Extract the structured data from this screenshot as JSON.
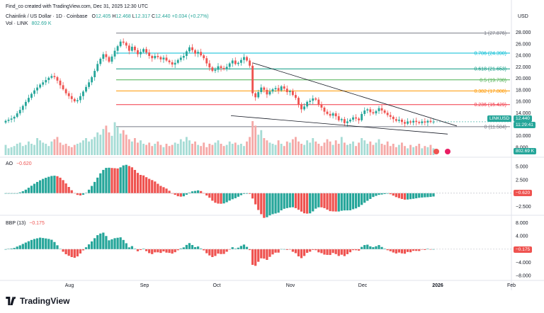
{
  "header": {
    "created_by": "Find_co created with TradingView.com, Dec 31, 2025 12:30 UTC",
    "symbol_line": "Chainlink / US Dollar · 1D · Coinbase",
    "ohlc": {
      "o_label": "O",
      "o": "12.405",
      "h_label": "H",
      "h": "12.468",
      "l_label": "L",
      "l": "12.317",
      "c_label": "C",
      "c": "12.440",
      "chg": "+0.034 (+0.27%)"
    },
    "vol_label": "Vol · LINK",
    "vol_value": "802.69 K",
    "currency": "USD"
  },
  "colors": {
    "up": "#26a69a",
    "down": "#ef5350",
    "text": "#131722",
    "grid": "#f0f3fa",
    "axis": "#787b86"
  },
  "branding": {
    "logo": "TradingView"
  },
  "chart_data": [
    {
      "type": "candlestick",
      "name": "price",
      "x_labels": [
        "Aug",
        "Sep",
        "Oct",
        "Nov",
        "Dec",
        "2026",
        "Feb"
      ],
      "y_ticks": [
        "28.000",
        "26.000",
        "24.000",
        "22.000",
        "20.000",
        "18.000",
        "16.000",
        "14.000",
        "12.000",
        "10.000",
        "8.000"
      ],
      "ylim": [
        7.5,
        29.2
      ],
      "last_price": "12.440",
      "last_symbol": "LINKUSD",
      "countdown": "11:29:41",
      "fib_levels": [
        {
          "ratio": "1",
          "value": "27.876",
          "color": "#787b86",
          "label": "1 (27.876)"
        },
        {
          "ratio": "0.786",
          "value": "24.390",
          "color": "#00bcd4",
          "label": "0.786 (24.390)"
        },
        {
          "ratio": "0.618",
          "value": "21.653",
          "color": "#089981",
          "label": "0.618 (21.653)"
        },
        {
          "ratio": "0.5",
          "value": "19.730",
          "color": "#4caf50",
          "label": "0.5 (19.730)"
        },
        {
          "ratio": "0.382",
          "value": "17.808",
          "color": "#ff9800",
          "label": "0.382 (17.808)"
        },
        {
          "ratio": "0.236",
          "value": "15.429",
          "color": "#f23645",
          "label": "0.236 (15.429)"
        },
        {
          "ratio": "0",
          "value": "11.584",
          "color": "#787b86",
          "label": "0 (11.584)"
        }
      ],
      "closes": [
        12.6,
        12.8,
        13.0,
        13.3,
        13.9,
        14.5,
        15.2,
        15.9,
        16.6,
        17.3,
        17.9,
        18.4,
        18.9,
        19.3,
        19.7,
        20.1,
        20.4,
        20.2,
        19.6,
        18.8,
        18.1,
        17.4,
        16.9,
        16.4,
        16.0,
        16.2,
        16.9,
        17.7,
        18.5,
        19.3,
        20.2,
        21.3,
        22.5,
        23.4,
        24.2,
        23.7,
        22.9,
        23.8,
        24.8,
        25.6,
        26.4,
        26.2,
        25.7,
        24.8,
        25.5,
        24.9,
        24.2,
        24.6,
        25.1,
        24.5,
        23.9,
        23.5,
        23.9,
        23.7,
        23.3,
        23.6,
        23.1,
        22.8,
        22.4,
        22.7,
        23.2,
        23.6,
        23.9,
        24.7,
        25.4,
        24.9,
        24.3,
        24.6,
        24.0,
        23.5,
        22.6,
        21.9,
        21.3,
        21.5,
        22.1,
        21.8,
        21.6,
        22.0,
        22.6,
        23.1,
        22.5,
        22.7,
        23.2,
        23.7,
        23.1,
        22.2,
        17.4,
        16.7,
        17.6,
        18.4,
        18.0,
        17.2,
        17.7,
        18.1,
        18.3,
        17.9,
        18.6,
        18.2,
        17.6,
        17.8,
        17.1,
        16.6,
        15.4,
        14.6,
        15.1,
        15.9,
        16.1,
        16.5,
        16.3,
        15.4,
        14.9,
        14.2,
        13.8,
        13.5,
        13.9,
        13.4,
        12.7,
        12.9,
        12.2,
        12.5,
        12.8,
        13.2,
        13.0,
        12.7,
        13.8,
        14.4,
        14.6,
        14.1,
        13.9,
        14.3,
        14.8,
        14.4,
        14.0,
        13.6,
        13.3,
        12.9,
        12.6,
        12.8,
        12.4,
        12.1,
        12.5,
        12.3,
        12.6,
        12.4,
        12.2,
        12.5,
        12.3,
        12.6,
        12.4,
        12.44
      ],
      "volumes": [
        0.9,
        0.6,
        0.7,
        0.8,
        1.0,
        1.1,
        0.8,
        0.9,
        1.2,
        1.0,
        0.9,
        1.5,
        1.3,
        1.1,
        1.0,
        0.8,
        1.2,
        1.4,
        1.6,
        1.1,
        0.9,
        1.0,
        0.8,
        0.7,
        0.9,
        1.0,
        1.1,
        1.3,
        1.5,
        1.2,
        1.4,
        1.6,
        2.0,
        1.8,
        2.3,
        2.6,
        2.0,
        1.7,
        2.9,
        2.5,
        1.9,
        2.2,
        1.8,
        1.4,
        1.2,
        1.5,
        1.1,
        1.3,
        1.0,
        0.9,
        1.1,
        0.8,
        1.0,
        1.2,
        0.9,
        0.7,
        1.0,
        0.8,
        0.9,
        1.1,
        1.0,
        1.4,
        1.2,
        1.6,
        1.3,
        1.0,
        1.2,
        0.9,
        0.8,
        1.1,
        0.7,
        1.0,
        0.9,
        1.1,
        1.3,
        1.0,
        0.8,
        0.9,
        1.2,
        1.0,
        1.1,
        0.9,
        1.0,
        0.8,
        1.2,
        1.6,
        3.0,
        2.6,
        1.8,
        2.2,
        1.5,
        1.3,
        1.1,
        1.0,
        0.9,
        1.3,
        1.0,
        0.8,
        1.2,
        1.1,
        1.4,
        1.6,
        1.2,
        1.0,
        0.9,
        1.3,
        1.1,
        1.5,
        1.2,
        1.0,
        0.8,
        1.1,
        1.4,
        1.2,
        0.9,
        1.3,
        1.0,
        1.6,
        1.1,
        0.9,
        1.0,
        1.2,
        0.8,
        1.1,
        1.5,
        1.3,
        1.0,
        1.2,
        0.9,
        1.1,
        1.4,
        1.0,
        0.9,
        1.2,
        0.8,
        1.0,
        0.7,
        0.9,
        1.1,
        0.8,
        0.6,
        0.9,
        0.7,
        0.8,
        1.0,
        0.6,
        0.8,
        0.7,
        0.9,
        0.6
      ],
      "trendlines": "descending wedge"
    },
    {
      "type": "histogram",
      "name": "AO",
      "label": "AO",
      "last": "−0.620",
      "y_ticks": [
        "5.000",
        "2.500",
        "0.000",
        "−2.500"
      ],
      "ylim": [
        -3.6,
        6.2
      ]
    },
    {
      "type": "histogram",
      "name": "BBP",
      "label": "BBP (13)",
      "last": "−0.175",
      "y_ticks": [
        "8.000",
        "4.000",
        "0.000",
        "−4.000",
        "−8.000"
      ],
      "ylim": [
        -8.6,
        9.4
      ]
    }
  ]
}
